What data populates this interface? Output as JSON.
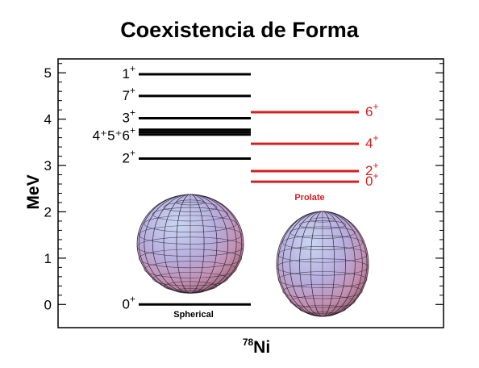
{
  "chart_data": {
    "type": "level-scheme",
    "title": "Coexistencia de Forma",
    "ylabel": "MeV",
    "xlabel_sup": "78",
    "xlabel": "Ni",
    "ylim": [
      -0.5,
      5.3
    ],
    "yticks": [
      0,
      1,
      2,
      3,
      4,
      5
    ],
    "grid": false,
    "colors": {
      "spherical": "#000000",
      "prolate": "#d42020"
    },
    "spherical": {
      "name": "Spherical",
      "levels": [
        {
          "energy": 0.0,
          "label": "0",
          "sup": "+"
        },
        {
          "energy": 3.15,
          "label": "2",
          "sup": "+"
        },
        {
          "energy": 3.72,
          "label": "4⁺5⁺6",
          "sup": "+",
          "multiplet": true
        },
        {
          "energy": 4.02,
          "label": "3",
          "sup": "+"
        },
        {
          "energy": 4.5,
          "label": "7",
          "sup": "+"
        },
        {
          "energy": 4.97,
          "label": "1",
          "sup": "+"
        }
      ]
    },
    "prolate": {
      "name": "Prolate",
      "levels": [
        {
          "energy": 2.65,
          "label": "0",
          "sup": "+"
        },
        {
          "energy": 2.88,
          "label": "2",
          "sup": "+"
        },
        {
          "energy": 3.47,
          "label": "4",
          "sup": "+"
        },
        {
          "energy": 4.15,
          "label": "6",
          "sup": "+"
        }
      ]
    }
  }
}
